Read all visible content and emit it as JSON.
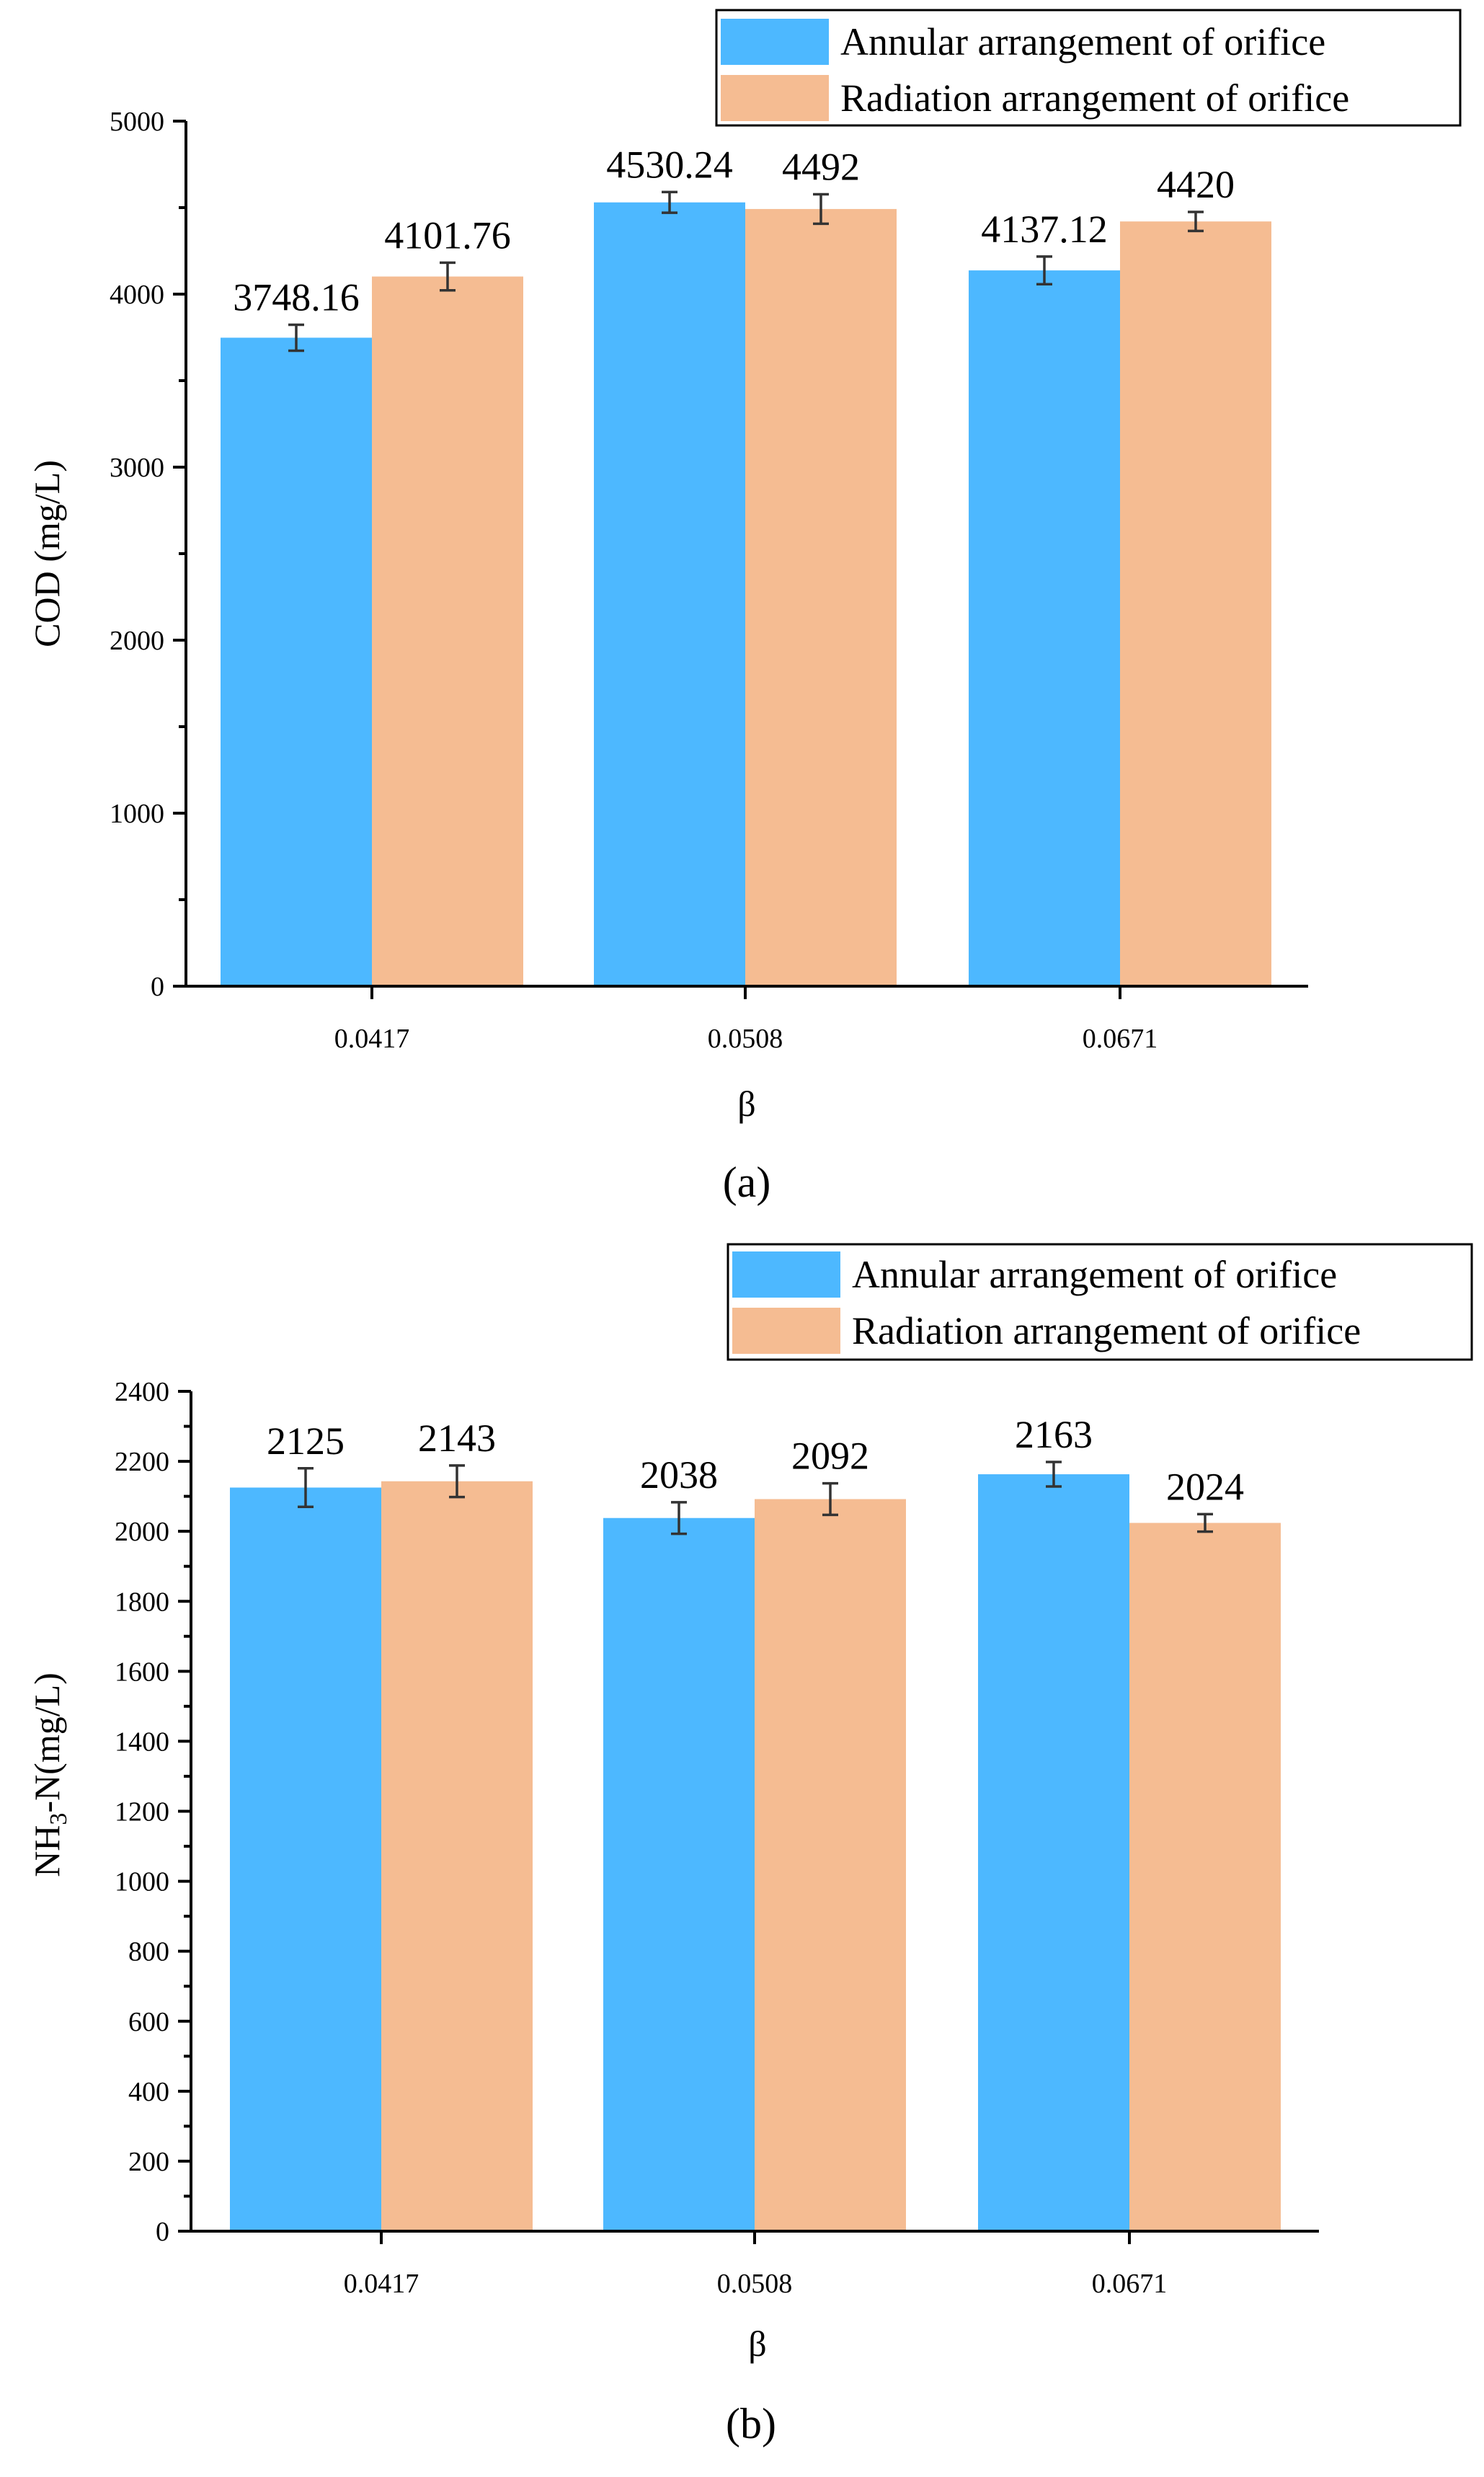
{
  "chart_data": [
    {
      "type": "bar",
      "panel_label": "(a)",
      "categories": [
        "0.0417",
        "0.0508",
        "0.0671"
      ],
      "xlabel": "β",
      "ylabel": "COD (mg/L)",
      "ylim": [
        0,
        5000
      ],
      "yticks": [
        0,
        1000,
        2000,
        3000,
        4000,
        5000
      ],
      "yticks_text": [
        "0",
        "1000",
        "2000",
        "3000",
        "4000",
        "5000"
      ],
      "legend_position": "top-right",
      "series": [
        {
          "name": "Annular arrangement of orifice",
          "color": "#4DB8FF",
          "values": [
            3748.16,
            4530.24,
            4137.12
          ],
          "labels": [
            "3748.16",
            "4530.24",
            "4137.12"
          ],
          "errors": [
            75,
            60,
            80
          ]
        },
        {
          "name": "Radiation arrangement of orifice",
          "color": "#F5BC92",
          "values": [
            4101.76,
            4492,
            4420
          ],
          "labels": [
            "4101.76",
            "4492",
            "4420"
          ],
          "errors": [
            80,
            85,
            55
          ]
        }
      ]
    },
    {
      "type": "bar",
      "panel_label": "(b)",
      "categories": [
        "0.0417",
        "0.0508",
        "0.0671"
      ],
      "xlabel": "β",
      "ylabel": "NH3-N(mg/L)",
      "ylabel_main": "NH",
      "ylabel_sub": "3",
      "ylabel_rest": "-N(mg/L)",
      "ylim": [
        0,
        2400
      ],
      "yticks": [
        0,
        200,
        400,
        600,
        800,
        1000,
        1200,
        1400,
        1600,
        1800,
        2000,
        2200,
        2400
      ],
      "yticks_text": [
        "0",
        "200",
        "400",
        "600",
        "800",
        "1000",
        "1200",
        "1400",
        "1600",
        "1800",
        "2000",
        "2200",
        "2400"
      ],
      "legend_position": "top-right",
      "series": [
        {
          "name": "Annular arrangement of orifice",
          "color": "#4DB8FF",
          "values": [
            2125,
            2038,
            2163
          ],
          "labels": [
            "2125",
            "2038",
            "2163"
          ],
          "errors": [
            55,
            45,
            35
          ]
        },
        {
          "name": "Radiation arrangement of orifice",
          "color": "#F5BC92",
          "values": [
            2143,
            2092,
            2024
          ],
          "labels": [
            "2143",
            "2092",
            "2024"
          ],
          "errors": [
            45,
            45,
            25
          ]
        }
      ]
    }
  ]
}
